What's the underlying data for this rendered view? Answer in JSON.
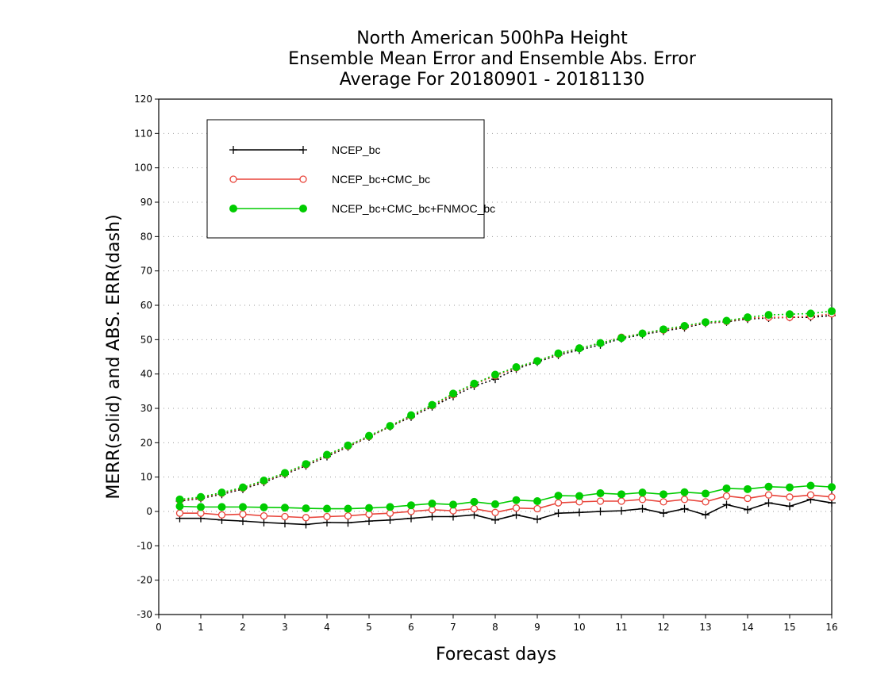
{
  "chart_data": {
    "type": "line",
    "title": [
      "North American 500hPa Height",
      "Ensemble Mean Error and Ensemble Abs. Error",
      "Average For 20180901 - 20181130"
    ],
    "xlabel": "Forecast days",
    "ylabel": "MERR(solid) and ABS. ERR(dash)",
    "xlim": [
      0,
      16
    ],
    "ylim": [
      -30,
      120
    ],
    "xticks": [
      0,
      1,
      2,
      3,
      4,
      5,
      6,
      7,
      8,
      9,
      10,
      11,
      12,
      13,
      14,
      15,
      16
    ],
    "yticks": [
      -30,
      -20,
      -10,
      0,
      10,
      20,
      30,
      40,
      50,
      60,
      70,
      80,
      90,
      100,
      110,
      120
    ],
    "grid": "horizontal dotted",
    "legend_position": "top-left",
    "x": [
      0.5,
      1,
      1.5,
      2,
      2.5,
      3,
      3.5,
      4,
      4.5,
      5,
      5.5,
      6,
      6.5,
      7,
      7.5,
      8,
      8.5,
      9,
      9.5,
      10,
      10.5,
      11,
      11.5,
      12,
      12.5,
      13,
      13.5,
      14,
      14.5,
      15,
      15.5,
      16
    ],
    "series": [
      {
        "name": "NCEP_bc",
        "color": "#000000",
        "marker": "plus",
        "merr": [
          -2,
          -2,
          -2.5,
          -2.8,
          -3.2,
          -3.5,
          -3.8,
          -3.2,
          -3.3,
          -2.8,
          -2.5,
          -2,
          -1.5,
          -1.5,
          -1,
          -2.5,
          -1,
          -2.3,
          -0.5,
          -0.3,
          0,
          0.2,
          0.8,
          -0.5,
          0.8,
          -1,
          2,
          0.5,
          2.5,
          1.5,
          3.5,
          2.5
        ],
        "abs_err": [
          3,
          3.8,
          5,
          6.5,
          8.5,
          10.8,
          13.3,
          16,
          18.8,
          21.7,
          24.7,
          27.5,
          30.5,
          33.5,
          36.5,
          38.5,
          41.5,
          43.5,
          45.5,
          47,
          48.5,
          50.3,
          51.5,
          52.5,
          53.5,
          54.8,
          55.2,
          56,
          56.3,
          56.5,
          56.5,
          57
        ]
      },
      {
        "name": "NCEP_bc+CMC_bc",
        "color": "#e8443a",
        "marker": "open-circle",
        "merr": [
          -0.5,
          -0.5,
          -1,
          -0.8,
          -1.3,
          -1.5,
          -1.8,
          -1.5,
          -1.3,
          -0.8,
          -0.5,
          0,
          0.5,
          0.2,
          0.8,
          -0.3,
          1,
          0.8,
          2.5,
          2.8,
          3,
          3,
          3.5,
          2.8,
          3.5,
          2.8,
          4.5,
          3.8,
          4.8,
          4.2,
          4.8,
          4.2
        ],
        "abs_err": [
          3.2,
          4,
          5.3,
          6.8,
          8.8,
          11,
          13.6,
          16.3,
          19,
          21.8,
          24.8,
          27.8,
          30.8,
          34,
          37,
          39.5,
          41.8,
          43.8,
          45.8,
          47.5,
          49,
          50.7,
          51.8,
          52.8,
          53.8,
          55,
          55.3,
          56.3,
          56.5,
          56.5,
          56.8,
          57.5
        ]
      },
      {
        "name": "NCEP_bc+CMC_bc+FNMOC_bc",
        "color": "#00cc00",
        "marker": "filled-circle",
        "merr": [
          1.5,
          1.3,
          1.3,
          1.3,
          1.2,
          1.1,
          0.9,
          0.8,
          0.8,
          1,
          1.3,
          1.8,
          2.3,
          2,
          2.8,
          2.1,
          3.3,
          3,
          4.6,
          4.5,
          5.3,
          5,
          5.5,
          5,
          5.6,
          5.2,
          6.7,
          6.5,
          7.2,
          7,
          7.5,
          7.1
        ],
        "abs_err": [
          3.5,
          4.2,
          5.5,
          7,
          9,
          11.2,
          13.8,
          16.5,
          19.2,
          22,
          24.9,
          28,
          31,
          34.3,
          37.2,
          39.8,
          42,
          43.8,
          46,
          47.5,
          49,
          50.5,
          51.8,
          53,
          54,
          55.1,
          55.5,
          56.5,
          57.2,
          57.4,
          57.6,
          58.3
        ]
      }
    ]
  }
}
